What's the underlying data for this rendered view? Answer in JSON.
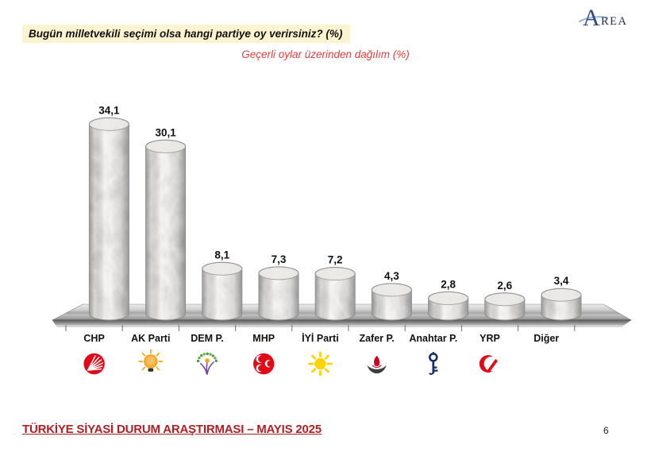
{
  "header": {
    "title": "Bugün milletvekili seçimi olsa hangi partiye oy verirsiniz? (%)",
    "subtitle": "Geçerli oylar üzerinden dağılım (%)",
    "logo_a": "A",
    "logo_rest": "REA"
  },
  "chart_data": {
    "type": "bar",
    "style": "3d-marble-cylinders",
    "title": "Bugün milletvekili seçimi olsa hangi partiye oy verirsiniz? (%)",
    "subtitle": "Geçerli oylar üzerinden dağılım (%)",
    "categories": [
      "CHP",
      "AK Parti",
      "DEM P.",
      "MHP",
      "İYİ Parti",
      "Zafer P.",
      "Anahtar P.",
      "YRP",
      "Diğer"
    ],
    "values": [
      34.1,
      30.1,
      8.1,
      7.3,
      7.2,
      4.3,
      2.8,
      2.6,
      3.4
    ],
    "value_labels": [
      "34,1",
      "30,1",
      "8,1",
      "7,3",
      "7,2",
      "4,3",
      "2,8",
      "2,6",
      "3,4"
    ],
    "logos": [
      "chp",
      "akparti",
      "dem",
      "mhp",
      "iyi",
      "zafer",
      "anahtar",
      "yrp",
      null
    ],
    "unit": "%",
    "ylim": [
      0,
      36
    ],
    "grid": false,
    "legend": false,
    "logo_colors": {
      "chp": "#E30A17",
      "akparti": "#F7A600",
      "dem_purple": "#7A4E9B",
      "dem_green": "#4C9B3F",
      "dem_green2": "#70AD47",
      "dem_sun": "#F6A500",
      "mhp": "#E30A17",
      "iyi": "#FED304",
      "zafer_flame": "#D2001E",
      "zafer_bowl": "#3D3D3D",
      "anahtar": "#14306B",
      "yrp": "#E30A17"
    }
  },
  "footer": {
    "report_title": "TÜRKİYE SİYASİ DURUM ARAŞTIRMASI – MAYIS 2025",
    "page_number": "6"
  },
  "colors": {
    "title_bg": "#FCF3D0",
    "subtitle_red": "#DE4140",
    "footer_red": "#B01F24",
    "logo_navy": "#2E4C7E",
    "swoosh_blue": "#8FB3DB"
  }
}
